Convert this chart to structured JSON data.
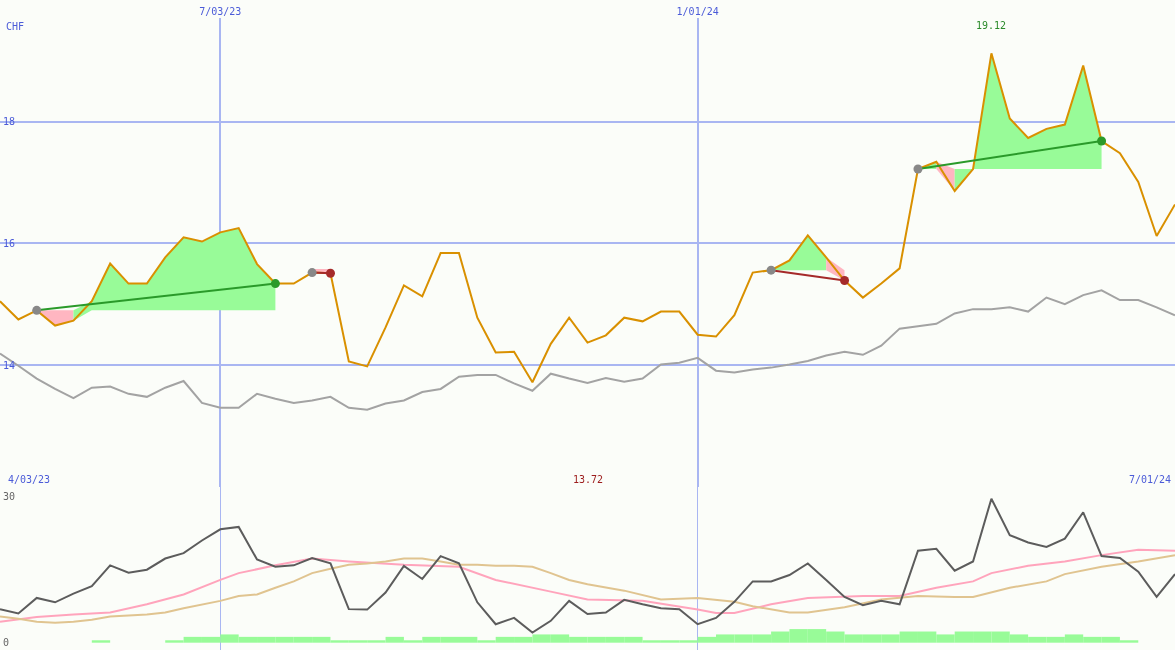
{
  "chart_data": [
    {
      "type": "line",
      "ylabel": "CHF",
      "x": [
        "2023-04-10",
        "2023-04-17",
        "2023-04-24",
        "2023-05-01",
        "2023-05-08",
        "2023-05-15",
        "2023-05-22",
        "2023-05-29",
        "2023-06-05",
        "2023-06-12",
        "2023-06-19",
        "2023-06-26",
        "2023-07-03",
        "2023-07-10",
        "2023-07-17",
        "2023-07-24",
        "2023-07-31",
        "2023-08-07",
        "2023-08-14",
        "2023-08-21",
        "2023-08-28",
        "2023-09-04",
        "2023-09-11",
        "2023-09-18",
        "2023-09-25",
        "2023-10-02",
        "2023-10-09",
        "2023-10-16",
        "2023-10-23",
        "2023-10-30",
        "2023-11-06",
        "2023-11-13",
        "2023-11-20",
        "2023-11-27",
        "2023-12-04",
        "2023-12-11",
        "2023-12-18",
        "2023-12-25",
        "2024-01-01",
        "2024-01-08",
        "2024-01-15",
        "2024-01-22",
        "2024-01-29",
        "2024-02-05",
        "2024-02-12",
        "2024-02-19",
        "2024-02-26",
        "2024-03-04",
        "2024-03-11",
        "2024-03-18",
        "2024-03-25",
        "2024-04-01",
        "2024-04-08",
        "2024-04-15",
        "2024-04-22",
        "2024-04-29",
        "2024-05-06",
        "2024-05-13",
        "2024-05-20",
        "2024-05-27",
        "2024-06-03",
        "2024-06-10",
        "2024-06-17",
        "2024-06-24",
        "2024-07-01"
      ],
      "xlim": [
        "2023-04-10",
        "2024-07-01"
      ],
      "xticks": [
        {
          "value": "2023-07-03",
          "label": "7/03/23"
        },
        {
          "value": "2024-01-01",
          "label": "1/01/24"
        }
      ],
      "ylim": [
        12,
        19.7
      ],
      "yticks": [
        14,
        16,
        18
      ],
      "grid": true,
      "annotations": [
        "4/03/23",
        "13.72",
        "7/01/24",
        {
          "text": "19.12",
          "x": "2024-04-22",
          "y": 19.12
        }
      ],
      "series": [
        {
          "type": "area",
          "color": "#ffb6c1",
          "x": [
            "2023-04-24",
            "2023-05-01",
            "2023-05-08"
          ],
          "values": [
            null,
            null,
            null
          ],
          "lower": [
            14.9,
            14.65,
            14.73
          ],
          "upper": [
            14.9,
            14.9,
            14.9
          ]
        },
        {
          "type": "area",
          "color": "#98fb98",
          "x": [
            "2023-05-08",
            "2023-05-15",
            "2023-05-22",
            "2023-05-29",
            "2023-06-05",
            "2023-06-12",
            "2023-06-19",
            "2023-06-26",
            "2023-07-03",
            "2023-07-10",
            "2023-07-17",
            "2023-07-24"
          ],
          "values": [
            null,
            null,
            null,
            null,
            null,
            null,
            null,
            null,
            null,
            null,
            null,
            null
          ],
          "lower": [
            14.73,
            14.9,
            14.9,
            14.9,
            14.9,
            14.9,
            14.9,
            14.9,
            14.9,
            14.9,
            14.9,
            14.9
          ],
          "upper": [
            14.9,
            15.05,
            15.67,
            15.34,
            15.34,
            15.77,
            16.1,
            16.03,
            16.18,
            16.25,
            15.66,
            15.34
          ]
        },
        {
          "type": "area",
          "color": "#ffb6c1",
          "x": [
            "2023-08-07",
            "2023-08-14"
          ],
          "values": [
            null,
            null
          ],
          "lower": [
            15.52,
            15.51
          ],
          "upper": [
            15.58,
            15.58
          ]
        },
        {
          "type": "area",
          "color": "#98fb98",
          "x": [
            "2024-01-29",
            "2024-02-05",
            "2024-02-12",
            "2024-02-19"
          ],
          "values": [
            null,
            null,
            null,
            null
          ],
          "lower": [
            15.56,
            15.56,
            15.56,
            15.56
          ],
          "upper": [
            15.56,
            15.72,
            16.13,
            15.77
          ]
        },
        {
          "type": "area",
          "color": "#ffb6c1",
          "x": [
            "2024-02-19",
            "2024-02-26"
          ],
          "values": [
            null,
            null
          ],
          "lower": [
            15.56,
            15.39
          ],
          "upper": [
            15.77,
            15.56
          ]
        },
        {
          "type": "area",
          "color": "#98fb98",
          "x": [
            "2024-03-25",
            "2024-04-01"
          ],
          "values": [
            null,
            null
          ],
          "lower": [
            17.22,
            17.22
          ],
          "upper": [
            17.22,
            17.34
          ]
        },
        {
          "type": "area",
          "color": "#ffb6c1",
          "x": [
            "2024-04-01",
            "2024-04-08"
          ],
          "values": [
            null,
            null
          ],
          "lower": [
            17.22,
            16.86
          ],
          "upper": [
            17.34,
            17.22
          ]
        },
        {
          "type": "area",
          "color": "#98fb98",
          "x": [
            "2024-04-08",
            "2024-04-15",
            "2024-04-22",
            "2024-04-29",
            "2024-05-06",
            "2024-05-13",
            "2024-05-20",
            "2024-05-27",
            "2024-06-03"
          ],
          "values": [
            null,
            null,
            null,
            null,
            null,
            null,
            null,
            null,
            null
          ],
          "lower": [
            16.86,
            17.22,
            17.22,
            17.22,
            17.22,
            17.22,
            17.22,
            17.22,
            17.22
          ],
          "upper": [
            17.22,
            17.22,
            19.12,
            18.05,
            17.73,
            17.88,
            17.95,
            18.92,
            17.68
          ]
        },
        {
          "color": "#a3a3a3",
          "values": [
            14.19,
            13.99,
            13.78,
            13.61,
            13.46,
            13.63,
            13.65,
            13.53,
            13.48,
            13.63,
            13.74,
            13.38,
            13.3,
            13.3,
            13.53,
            13.45,
            13.38,
            13.42,
            13.48,
            13.3,
            13.27,
            13.37,
            13.42,
            13.56,
            13.61,
            13.81,
            13.84,
            13.84,
            13.7,
            13.58,
            13.86,
            13.78,
            13.71,
            13.79,
            13.73,
            13.78,
            14.01,
            14.04,
            14.12,
            13.91,
            13.88,
            13.93,
            13.96,
            14.01,
            14.07,
            14.16,
            14.22,
            14.17,
            14.32,
            14.6,
            14.64,
            14.68,
            14.85,
            14.92,
            14.92,
            14.95,
            14.88,
            15.11,
            15.0,
            15.15,
            15.23,
            15.07,
            15.07,
            14.95,
            14.82
          ]
        },
        {
          "color": "#d99000",
          "values": [
            15.05,
            14.75,
            14.9,
            14.65,
            14.73,
            15.05,
            15.67,
            15.34,
            15.34,
            15.77,
            16.1,
            16.03,
            16.18,
            16.25,
            15.66,
            15.34,
            15.34,
            15.52,
            15.51,
            14.06,
            13.98,
            14.62,
            15.31,
            15.13,
            15.84,
            15.84,
            14.78,
            14.21,
            14.22,
            13.72,
            14.35,
            14.78,
            14.37,
            14.49,
            14.78,
            14.72,
            14.88,
            14.88,
            14.5,
            14.47,
            14.82,
            15.52,
            15.56,
            15.72,
            16.13,
            15.77,
            15.39,
            15.11,
            15.34,
            15.59,
            17.22,
            17.34,
            16.86,
            17.22,
            19.12,
            18.05,
            17.73,
            17.88,
            17.95,
            18.92,
            17.68,
            17.48,
            17.01,
            16.12,
            16.64
          ]
        },
        {
          "color": "#2a9a2a",
          "marker": "circle",
          "x": [
            "2023-04-24",
            "2023-07-24"
          ],
          "values": [
            14.9,
            15.34
          ],
          "colors": [
            "#888888",
            "#2a9a2a"
          ]
        },
        {
          "color": "#a52a2a",
          "marker": "circle",
          "x": [
            "2023-08-07",
            "2023-08-14"
          ],
          "values": [
            15.52,
            15.51
          ],
          "colors": [
            "#888888",
            "#a52a2a"
          ]
        },
        {
          "color": "#a52a2a",
          "marker": "circle",
          "x": [
            "2024-01-29",
            "2024-02-26"
          ],
          "values": [
            15.56,
            15.39
          ],
          "colors": [
            "#888888",
            "#a52a2a"
          ]
        },
        {
          "color": "#2a9a2a",
          "marker": "circle",
          "x": [
            "2024-03-25",
            "2024-06-03"
          ],
          "values": [
            17.22,
            17.68
          ],
          "colors": [
            "#888888",
            "#2a9a2a"
          ]
        }
      ]
    },
    {
      "type": "line",
      "x": [
        "2023-04-10",
        "2023-04-17",
        "2023-04-24",
        "2023-05-01",
        "2023-05-08",
        "2023-05-15",
        "2023-05-22",
        "2023-05-29",
        "2023-06-05",
        "2023-06-12",
        "2023-06-19",
        "2023-06-26",
        "2023-07-03",
        "2023-07-10",
        "2023-07-17",
        "2023-07-24",
        "2023-07-31",
        "2023-08-07",
        "2023-08-14",
        "2023-08-21",
        "2023-08-28",
        "2023-09-04",
        "2023-09-11",
        "2023-09-18",
        "2023-09-25",
        "2023-10-02",
        "2023-10-09",
        "2023-10-16",
        "2023-10-23",
        "2023-10-30",
        "2023-11-06",
        "2023-11-13",
        "2023-11-20",
        "2023-11-27",
        "2023-12-04",
        "2023-12-11",
        "2023-12-18",
        "2023-12-25",
        "2024-01-01",
        "2024-01-08",
        "2024-01-15",
        "2024-01-22",
        "2024-01-29",
        "2024-02-05",
        "2024-02-12",
        "2024-02-19",
        "2024-02-26",
        "2024-03-04",
        "2024-03-11",
        "2024-03-18",
        "2024-03-25",
        "2024-04-01",
        "2024-04-08",
        "2024-04-15",
        "2024-04-22",
        "2024-04-29",
        "2024-05-06",
        "2024-05-13",
        "2024-05-20",
        "2024-05-27",
        "2024-06-03",
        "2024-06-10",
        "2024-06-17",
        "2024-06-24",
        "2024-07-01"
      ],
      "xlim": [
        "2023-04-10",
        "2024-07-01"
      ],
      "xticks": [
        {
          "value": "2023-07-03",
          "label": null
        },
        {
          "value": "2024-01-01",
          "label": null
        }
      ],
      "ylim": [
        -1.5,
        32
      ],
      "yticks": [
        0,
        30
      ],
      "grid": "x",
      "tick_labels": "y",
      "series": [
        {
          "type": "bar",
          "color": "#98fb98",
          "x": [
            "2023-05-18T12:00",
            "2023-05-25T12:00",
            "2023-06-01T12:00",
            "2023-06-08T12:00",
            "2023-06-15T12:00",
            "2023-06-22T12:00",
            "2023-06-29T12:00",
            "2023-07-06T12:00",
            "2023-07-13T12:00",
            "2023-07-20T12:00",
            "2023-07-27T12:00",
            "2023-08-03T12:00",
            "2023-08-10T12:00",
            "2023-08-17T12:00",
            "2023-08-24T12:00",
            "2023-08-31T12:00",
            "2023-09-07T12:00",
            "2023-09-14T12:00",
            "2023-09-21T12:00",
            "2023-09-28T12:00",
            "2023-10-05T12:00",
            "2023-10-12T12:00",
            "2023-10-19T12:00",
            "2023-10-26T12:00",
            "2023-11-02T12:00",
            "2023-11-09T12:00",
            "2023-11-16T12:00",
            "2023-11-23T12:00",
            "2023-11-30T12:00",
            "2023-12-07T12:00",
            "2023-12-14T12:00",
            "2023-12-21T12:00",
            "2023-12-28T12:00",
            "2024-01-04T12:00",
            "2024-01-11T12:00",
            "2024-01-18T12:00",
            "2024-01-25T12:00",
            "2024-02-01T12:00",
            "2024-02-08T12:00",
            "2024-02-15T12:00",
            "2024-02-22T12:00",
            "2024-02-29T12:00",
            "2024-03-07T12:00",
            "2024-03-14T12:00",
            "2024-03-21T12:00",
            "2024-03-28T12:00",
            "2024-04-04T12:00",
            "2024-04-11T12:00",
            "2024-04-18T12:00",
            "2024-04-25T12:00",
            "2024-05-02T12:00",
            "2024-05-09T12:00",
            "2024-05-16T12:00",
            "2024-05-23T12:00",
            "2024-05-30T12:00",
            "2024-06-06T12:00",
            "2024-06-13T12:00"
          ],
          "values": [
            0.5,
            null,
            null,
            null,
            0.5,
            1.2,
            1.2,
            1.7,
            1.2,
            1.2,
            1.2,
            1.2,
            1.2,
            0.5,
            0.5,
            0.5,
            1.2,
            0.5,
            1.2,
            1.2,
            1.2,
            0.5,
            1.2,
            1.2,
            1.7,
            1.7,
            1.2,
            1.2,
            1.2,
            1.2,
            0.5,
            0.5,
            0.5,
            1.2,
            1.7,
            1.7,
            1.7,
            2.3,
            2.8,
            2.8,
            2.3,
            1.7,
            1.7,
            1.7,
            2.3,
            2.3,
            1.7,
            2.3,
            2.3,
            2.3,
            1.7,
            1.2,
            1.2,
            1.7,
            1.2,
            1.2,
            0.5
          ]
        },
        {
          "color": "#ffa4bc",
          "x": [
            "2023-04-10",
            "2023-04-24",
            "2023-05-08",
            "2023-05-22",
            "2023-06-05",
            "2023-06-19",
            "2023-07-03",
            "2023-07-10",
            "2023-07-24",
            "2023-08-07",
            "2023-08-21",
            "2023-09-11",
            "2023-10-02",
            "2023-10-16",
            "2023-11-06",
            "2023-11-20",
            "2023-12-11",
            "2024-01-01",
            "2024-01-08",
            "2024-01-15",
            "2024-01-29",
            "2024-02-12",
            "2024-03-04",
            "2024-03-18",
            "2024-04-01",
            "2024-04-15",
            "2024-04-22",
            "2024-05-06",
            "2024-05-20",
            "2024-06-03",
            "2024-06-17",
            "2024-07-01"
          ],
          "values": [
            4.3,
            5.3,
            5.8,
            6.2,
            7.9,
            9.9,
            12.9,
            14.3,
            15.9,
            17.3,
            16.7,
            16.0,
            15.6,
            12.9,
            10.5,
            8.9,
            8.6,
            6.8,
            6.1,
            6.1,
            7.9,
            9.2,
            9.6,
            9.6,
            11.3,
            12.6,
            14.3,
            15.8,
            16.7,
            18.0,
            19.1,
            18.9
          ]
        },
        {
          "color": "#e0c490",
          "x": [
            "2023-04-10",
            "2023-04-17",
            "2023-04-24",
            "2023-05-01",
            "2023-05-08",
            "2023-05-15",
            "2023-05-22",
            "2023-06-05",
            "2023-06-12",
            "2023-06-19",
            "2023-07-03",
            "2023-07-10",
            "2023-07-17",
            "2023-07-24",
            "2023-07-31",
            "2023-08-07",
            "2023-08-14",
            "2023-08-21",
            "2023-08-28",
            "2023-09-04",
            "2023-09-11",
            "2023-09-18",
            "2023-09-25",
            "2023-10-02",
            "2023-10-09",
            "2023-10-16",
            "2023-10-23",
            "2023-10-30",
            "2023-11-06",
            "2023-11-13",
            "2023-11-20",
            "2023-12-04",
            "2023-12-18",
            "2024-01-01",
            "2024-01-15",
            "2024-01-22",
            "2024-02-05",
            "2024-02-12",
            "2024-02-26",
            "2024-03-11",
            "2024-03-25",
            "2024-04-08",
            "2024-04-15",
            "2024-04-29",
            "2024-05-13",
            "2024-05-20",
            "2024-06-03",
            "2024-06-17",
            "2024-07-01"
          ],
          "values": [
            5.4,
            4.9,
            4.3,
            4.1,
            4.3,
            4.7,
            5.4,
            5.8,
            6.2,
            7.1,
            8.6,
            9.6,
            9.9,
            11.3,
            12.6,
            14.3,
            15.2,
            16.0,
            16.3,
            16.7,
            17.3,
            17.3,
            16.7,
            16.0,
            16.0,
            15.8,
            15.8,
            15.6,
            14.3,
            12.9,
            12.0,
            10.7,
            8.9,
            9.2,
            8.4,
            7.5,
            6.2,
            6.2,
            7.3,
            8.9,
            9.6,
            9.4,
            9.4,
            11.3,
            12.6,
            14.1,
            15.6,
            16.7,
            18.0
          ]
        },
        {
          "color": "#5c5c5c",
          "values": [
            6.9,
            6.0,
            9.2,
            8.3,
            10.1,
            11.6,
            15.9,
            14.4,
            15.0,
            17.3,
            18.4,
            21.0,
            23.3,
            23.8,
            17.1,
            15.6,
            15.9,
            17.4,
            16.3,
            6.9,
            6.8,
            10.3,
            15.8,
            13.1,
            17.8,
            16.3,
            8.3,
            3.8,
            5.1,
            2.1,
            4.5,
            8.6,
            5.9,
            6.2,
            8.8,
            7.9,
            7.1,
            6.9,
            3.8,
            5.1,
            8.4,
            12.6,
            12.6,
            13.9,
            16.3,
            12.9,
            9.4,
            7.7,
            8.6,
            7.9,
            18.9,
            19.3,
            14.8,
            16.7,
            29.6,
            22.1,
            20.6,
            19.7,
            21.4,
            26.8,
            17.8,
            17.4,
            14.6,
            9.4,
            14.1
          ]
        }
      ]
    }
  ]
}
